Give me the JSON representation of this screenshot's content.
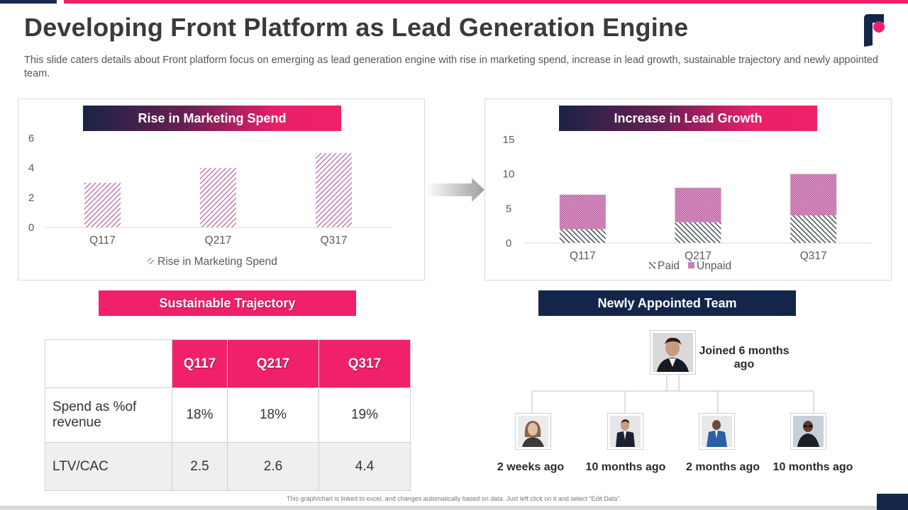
{
  "page": {
    "title": "Developing Front Platform as Lead Generation Engine",
    "subtitle": "This slide caters details about Front platform focus on emerging as lead generation engine with rise in marketing spend, increase in lead growth, sustainable trajectory and newly appointed team.",
    "footer_note": "This graph/chart is linked to excel, and changes automatically based on data. Just left click on it and select “Edit Data”.",
    "brand_pink": "#f0206a",
    "brand_navy": "#13264a",
    "logo_icon": "front-logo-icon"
  },
  "marketing": {
    "banner": "Rise in Marketing Spend",
    "legend": "Rise in Marketing Spend"
  },
  "leads": {
    "banner": "Increase in Lead Growth",
    "legend_paid": "Paid",
    "legend_unpaid": "Unpaid"
  },
  "trajectory": {
    "banner": "Sustainable Trajectory",
    "headers": [
      "Q117",
      "Q217",
      "Q317"
    ],
    "rows": [
      {
        "label": "Spend as %of revenue",
        "values": [
          "18%",
          "18%",
          "19%"
        ]
      },
      {
        "label": "LTV/CAC",
        "values": [
          "2.5",
          "2.6",
          "4.4"
        ]
      }
    ]
  },
  "team": {
    "banner": "Newly Appointed Team",
    "lead_label": "Joined 6 months ago",
    "members": [
      {
        "label": "2 weeks ago",
        "icon": "woman-avatar-icon"
      },
      {
        "label": "10 months ago",
        "icon": "man-suit-avatar-icon"
      },
      {
        "label": "2 months ago",
        "icon": "man-blue-suit-avatar-icon"
      },
      {
        "label": "10 months ago",
        "icon": "man-glasses-avatar-icon"
      }
    ]
  },
  "chart_data": [
    {
      "type": "bar",
      "title": "Rise in Marketing Spend",
      "categories": [
        "Q117",
        "Q217",
        "Q317"
      ],
      "series": [
        {
          "name": "Rise in Marketing Spend",
          "values": [
            3,
            4,
            5
          ]
        }
      ],
      "ylim": [
        0,
        6
      ],
      "yticks": [
        0,
        2,
        4,
        6
      ],
      "grid": false,
      "legend": "bottom"
    },
    {
      "type": "bar",
      "stacked": true,
      "title": "Increase in Lead Growth",
      "categories": [
        "Q117",
        "Q217",
        "Q317"
      ],
      "series": [
        {
          "name": "Paid",
          "values": [
            2,
            3,
            4
          ]
        },
        {
          "name": "Unpaid",
          "values": [
            5,
            5,
            6
          ]
        }
      ],
      "ylim": [
        0,
        15
      ],
      "yticks": [
        0,
        5,
        10,
        15
      ],
      "grid": false,
      "legend": "bottom"
    }
  ]
}
